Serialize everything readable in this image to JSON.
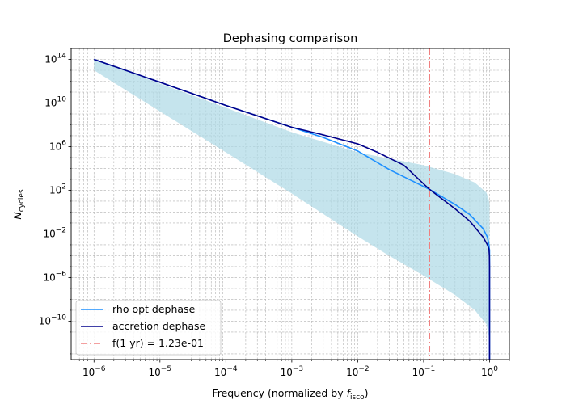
{
  "chart_data": {
    "type": "line",
    "title": "Dephasing comparison",
    "xlabel": {
      "main": "Frequency (normalized by ",
      "symbol": "f",
      "sub": "isco",
      "suffix": ")"
    },
    "ylabel": {
      "symbol": "N",
      "sub": "cycles"
    },
    "xscale": "log",
    "yscale": "log",
    "xlim": [
      4.5e-07,
      2.0
    ],
    "ylim": [
      3e-14,
      1000000000000000.0
    ],
    "grid": true,
    "legend_position": "lower-left",
    "x_ticks": [
      {
        "base": "10",
        "exp": "−6",
        "value": 1e-06
      },
      {
        "base": "10",
        "exp": "−5",
        "value": 1e-05
      },
      {
        "base": "10",
        "exp": "−4",
        "value": 0.0001
      },
      {
        "base": "10",
        "exp": "−3",
        "value": 0.001
      },
      {
        "base": "10",
        "exp": "−2",
        "value": 0.01
      },
      {
        "base": "10",
        "exp": "−1",
        "value": 0.1
      },
      {
        "base": "10",
        "exp": "0",
        "value": 1
      }
    ],
    "y_ticks": [
      {
        "base": "10",
        "exp": "−10",
        "value": 1e-10
      },
      {
        "base": "10",
        "exp": "−6",
        "value": 1e-06
      },
      {
        "base": "10",
        "exp": "−2",
        "value": 0.01
      },
      {
        "base": "10",
        "exp": "2",
        "value": 100.0
      },
      {
        "base": "10",
        "exp": "6",
        "value": 1000000.0
      },
      {
        "base": "10",
        "exp": "10",
        "value": 10000000000.0
      },
      {
        "base": "10",
        "exp": "14",
        "value": 100000000000000.0
      }
    ],
    "band": {
      "color": "#add8e6",
      "opacity": 0.7,
      "x": [
        1e-06,
        1e-05,
        0.0001,
        0.001,
        0.01,
        0.03,
        0.1,
        0.3,
        0.6,
        0.9,
        0.97,
        0.995,
        1.0
      ],
      "upper": [
        100000000000000.0,
        600000000000.0,
        3700000000.0,
        21000000.0,
        300000.0,
        80000.0,
        20000.0,
        3000.0,
        500.0,
        60,
        15,
        6,
        4
      ],
      "lower": [
        10000000000000.0,
        1700000000.0,
        300000.0,
        50.0,
        0.006,
        0.0001,
        1.5e-06,
        2.5e-08,
        1e-09,
        5e-11,
        5e-12,
        1e-12,
        1e-13
      ]
    },
    "series": [
      {
        "name": "rho opt dephase",
        "color": "#1e90ff",
        "style": "solid",
        "x": [
          1e-06,
          1e-05,
          0.0001,
          0.001,
          0.003,
          0.01,
          0.03,
          0.1,
          0.123,
          0.3,
          0.5,
          0.8,
          0.93,
          0.98,
          1.0,
          1.0
        ],
        "y": [
          100000000000000.0,
          800000000000.0,
          6000000000.0,
          60000000.0,
          7000000.0,
          400000.0,
          8000.0,
          220.0,
          120.0,
          5,
          0.6,
          0.03,
          0.005,
          0.001,
          0.0003,
          3e-14
        ]
      },
      {
        "name": "accretion dephase",
        "color": "#00008b",
        "style": "solid",
        "x": [
          1e-06,
          1e-05,
          0.0001,
          0.001,
          0.003,
          0.01,
          0.02,
          0.05,
          0.123,
          0.3,
          0.5,
          0.8,
          0.93,
          0.98,
          0.995,
          1.0,
          1.0
        ],
        "y": [
          100000000000000.0,
          800000000000.0,
          6000000000.0,
          60000000.0,
          12000000.0,
          1800000.0,
          300000.0,
          20000.0,
          120.0,
          2,
          0.15,
          0.005,
          0.001,
          0.0004,
          0.0001,
          1e-05,
          3e-14
        ]
      }
    ],
    "vline": {
      "name": "f(1 yr) = 1.23e-01",
      "x": 0.123,
      "color": "#f08080",
      "style": "dashdot"
    }
  }
}
